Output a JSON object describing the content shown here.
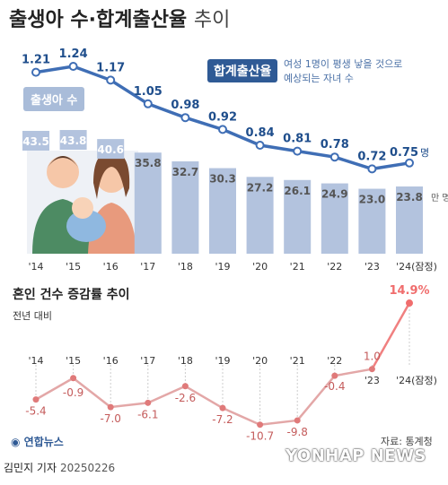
{
  "title_main": "출생아 수·합계출산율",
  "title_suffix": "추이",
  "legend": {
    "tfr_label": "합계출산율",
    "tfr_desc_line1": "여성 1명이 평생 낳을 것으로",
    "tfr_desc_line2": "예상되는 자녀 수",
    "births_label": "출생아 수",
    "births_unit": "만 명",
    "tfr_unit": "명"
  },
  "section2": {
    "title": "혼인 건수 증감률 추이",
    "subtitle": "전년 대비"
  },
  "footer": {
    "logo": "연합뉴스",
    "source": "자료: 통계청",
    "credit": "김민지 기자",
    "date": "20250226",
    "watermark": "YONHAP NEWS"
  },
  "colors": {
    "bar": "#b3c3de",
    "tfr_line": "#3f6eb5",
    "tfr_label": "#1f4e8c",
    "births_label": "#ffffff",
    "marriage_line_negative": "#e3a7a7",
    "marriage_line_positive": "#f08080",
    "marriage_dot": "#e07a7a",
    "marriage_label": "#c45b5b",
    "highlight": "#f06d6d"
  },
  "chart_data": [
    {
      "type": "bar",
      "series_name": "출생아 수",
      "unit": "만 명",
      "categories": [
        "'14",
        "'15",
        "'16",
        "'17",
        "'18",
        "'19",
        "'20",
        "'21",
        "'22",
        "'23",
        "'24(잠정)"
      ],
      "values": [
        43.5,
        43.8,
        40.6,
        35.8,
        32.7,
        30.3,
        27.2,
        26.1,
        24.9,
        23.0,
        23.8
      ],
      "value_labels": [
        "43.5",
        "43.8",
        "40.6",
        "35.8",
        "32.7",
        "30.3",
        "27.2",
        "26.1",
        "24.9",
        "23.0",
        "23.8"
      ]
    },
    {
      "type": "line",
      "series_name": "합계출산율",
      "unit": "명",
      "categories": [
        "'14",
        "'15",
        "'16",
        "'17",
        "'18",
        "'19",
        "'20",
        "'21",
        "'22",
        "'23",
        "'24(잠정)"
      ],
      "values": [
        1.21,
        1.24,
        1.17,
        1.05,
        0.98,
        0.92,
        0.84,
        0.81,
        0.78,
        0.72,
        0.75
      ],
      "value_labels": [
        "1.21",
        "1.24",
        "1.17",
        "1.05",
        "0.98",
        "0.92",
        "0.84",
        "0.81",
        "0.78",
        "0.72",
        "0.75"
      ]
    },
    {
      "type": "line",
      "series_name": "혼인 건수 증감률",
      "unit": "%",
      "categories": [
        "'14",
        "'15",
        "'16",
        "'17",
        "'18",
        "'19",
        "'20",
        "'21",
        "'22",
        "'23",
        "'24(잠정)"
      ],
      "values": [
        -5.4,
        -0.9,
        -7.0,
        -6.1,
        -2.6,
        -7.2,
        -10.7,
        -9.8,
        -0.4,
        1.0,
        14.9
      ],
      "value_labels": [
        "-5.4",
        "-0.9",
        "-7.0",
        "-6.1",
        "-2.6",
        "-7.2",
        "-10.7",
        "-9.8",
        "-0.4",
        "1.0",
        "14.9%"
      ]
    }
  ]
}
